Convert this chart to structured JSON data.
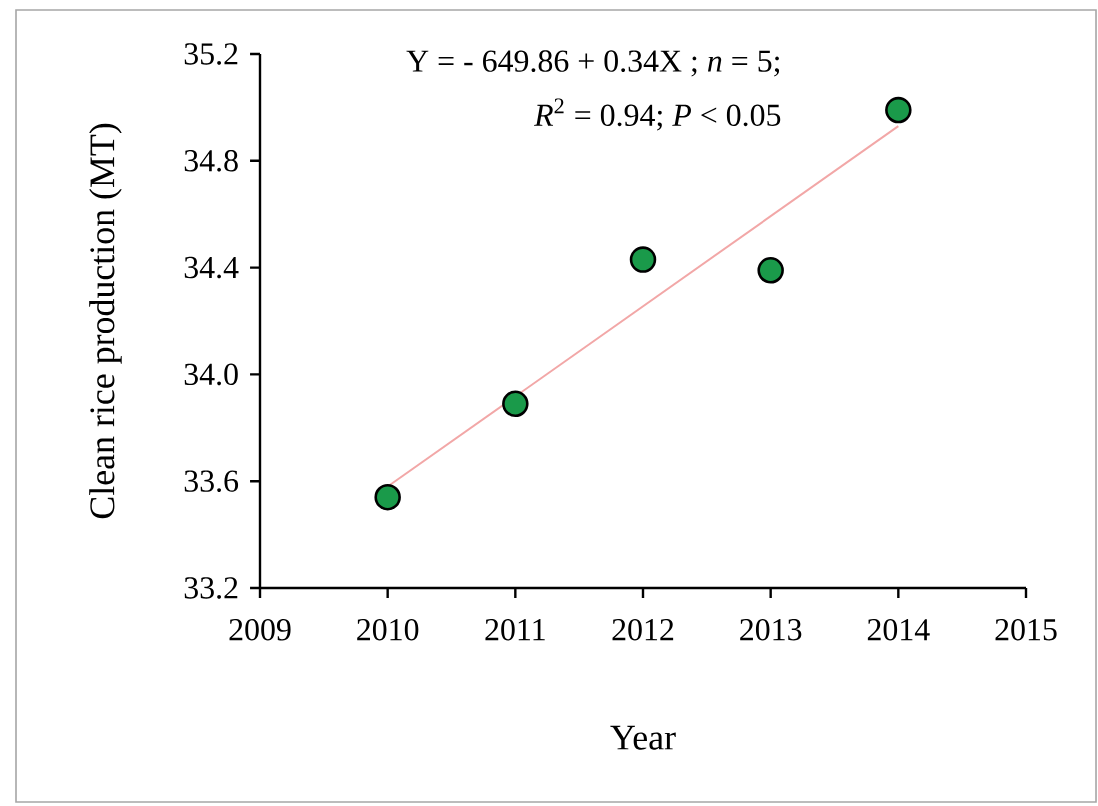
{
  "chart_data": {
    "type": "scatter",
    "xlabel": "Year",
    "ylabel": "Clean rice production (MT)",
    "annotations": [
      "Y = - 649.86 + 0.34X ; *n* = 5;",
      "*R*$^{2}$ = 0.94; *P* < 0.05"
    ],
    "series": [
      {
        "marker": "circle",
        "color": "#1a9a4a",
        "x": [
          2010,
          2011,
          2012,
          2013,
          2014
        ],
        "values": [
          33.54,
          33.89,
          34.43,
          34.39,
          34.99
        ]
      },
      {
        "type": "line",
        "color": "#f2a7a7",
        "marker": "none",
        "x": [
          2010,
          2014
        ],
        "values": [
          33.58,
          34.93
        ]
      }
    ],
    "xlim": [
      2009,
      2015
    ],
    "xticks": [
      2009,
      2010,
      2011,
      2012,
      2013,
      2014,
      2015
    ],
    "ylim": [
      33.2,
      35.2
    ],
    "yticks": [
      33.2,
      33.6,
      {
        "value": 34,
        "label": "34.0"
      },
      34.4,
      34.8,
      35.2
    ],
    "grid": false
  }
}
